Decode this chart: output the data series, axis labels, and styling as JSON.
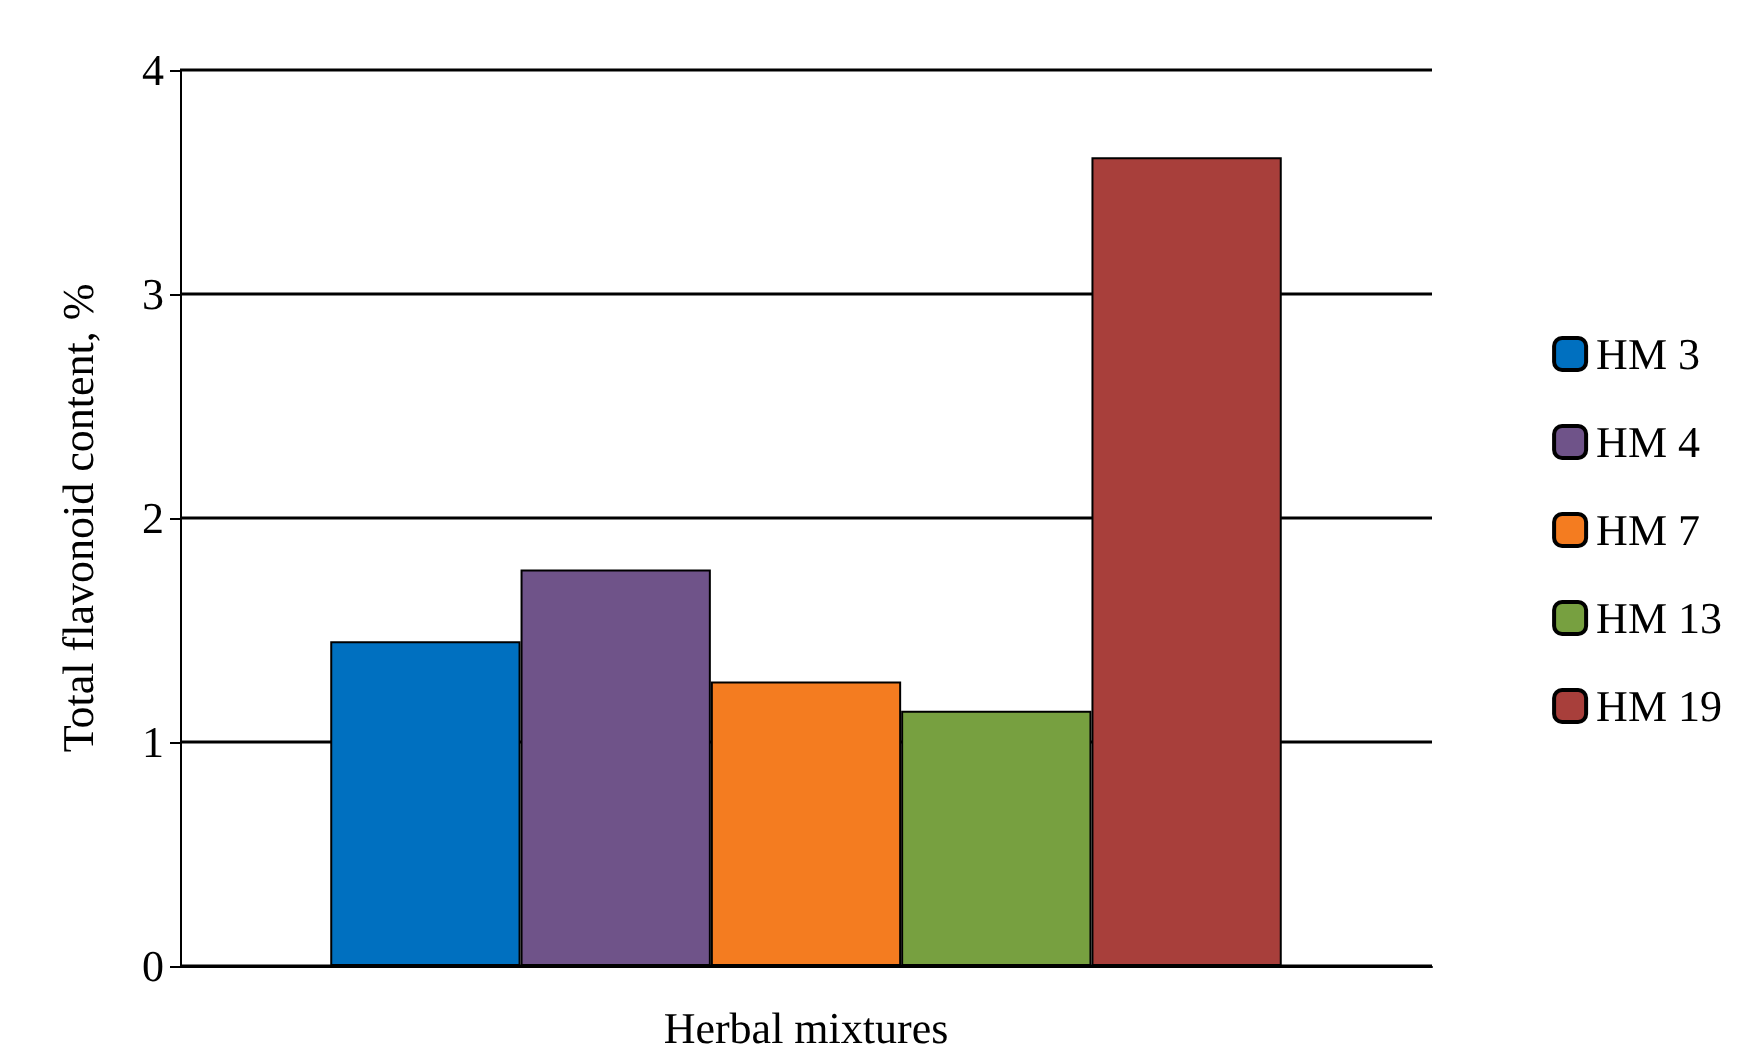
{
  "chart_data": {
    "type": "bar",
    "xlabel": "Herbal mixtures",
    "ylabel": "Total flavonoid content, %",
    "categories": [
      null
    ],
    "series": [
      {
        "name": "HM 3",
        "color": "#0070c0",
        "values": [
          1.45
        ]
      },
      {
        "name": "HM 4",
        "color": "#6f5389",
        "values": [
          1.77
        ]
      },
      {
        "name": "HM 7",
        "color": "#f47c20",
        "values": [
          1.27
        ]
      },
      {
        "name": "HM 13",
        "color": "#77a040",
        "values": [
          1.14
        ]
      },
      {
        "name": "HM 19",
        "color": "#a83f3b",
        "values": [
          3.61
        ]
      }
    ],
    "ylim": [
      0,
      4
    ],
    "yticks": [
      0,
      1,
      2,
      3,
      4
    ],
    "grid": "y",
    "legend": "right"
  }
}
